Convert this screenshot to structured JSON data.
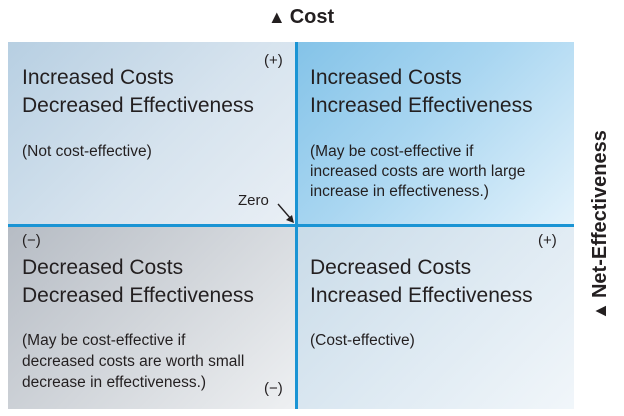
{
  "axes": {
    "vertical": {
      "arrow": "▲",
      "label": "Cost"
    },
    "horizontal": {
      "arrow": "▲",
      "label": "Net-Effectiveness"
    }
  },
  "quadrants": {
    "top_left": {
      "title_line1": "Increased Costs",
      "title_line2": "Decreased Effectiveness",
      "note_lines": [
        "(Not cost-effective)"
      ],
      "sign": "(+)"
    },
    "top_right": {
      "title_line1": "Increased Costs",
      "title_line2": "Increased Effectiveness",
      "note_lines": [
        "(May be cost-effective if",
        "increased costs are worth large",
        "increase in effectiveness.)"
      ]
    },
    "bottom_left": {
      "title_line1": "Decreased Costs",
      "title_line2": "Decreased Effectiveness",
      "note_lines": [
        "(May be cost-effective if",
        "decreased costs are worth small",
        "decrease in effectiveness.)"
      ],
      "sign_top": "(−)",
      "sign_bottom": "(−)"
    },
    "bottom_right": {
      "title_line1": "Decreased Costs",
      "title_line2": "Increased Effectiveness",
      "note_lines": [
        "(Cost-effective)"
      ],
      "sign": "(+)"
    }
  },
  "origin_label": "Zero",
  "colors": {
    "axis_lines": "#1a94d4",
    "text": "#231f20"
  }
}
